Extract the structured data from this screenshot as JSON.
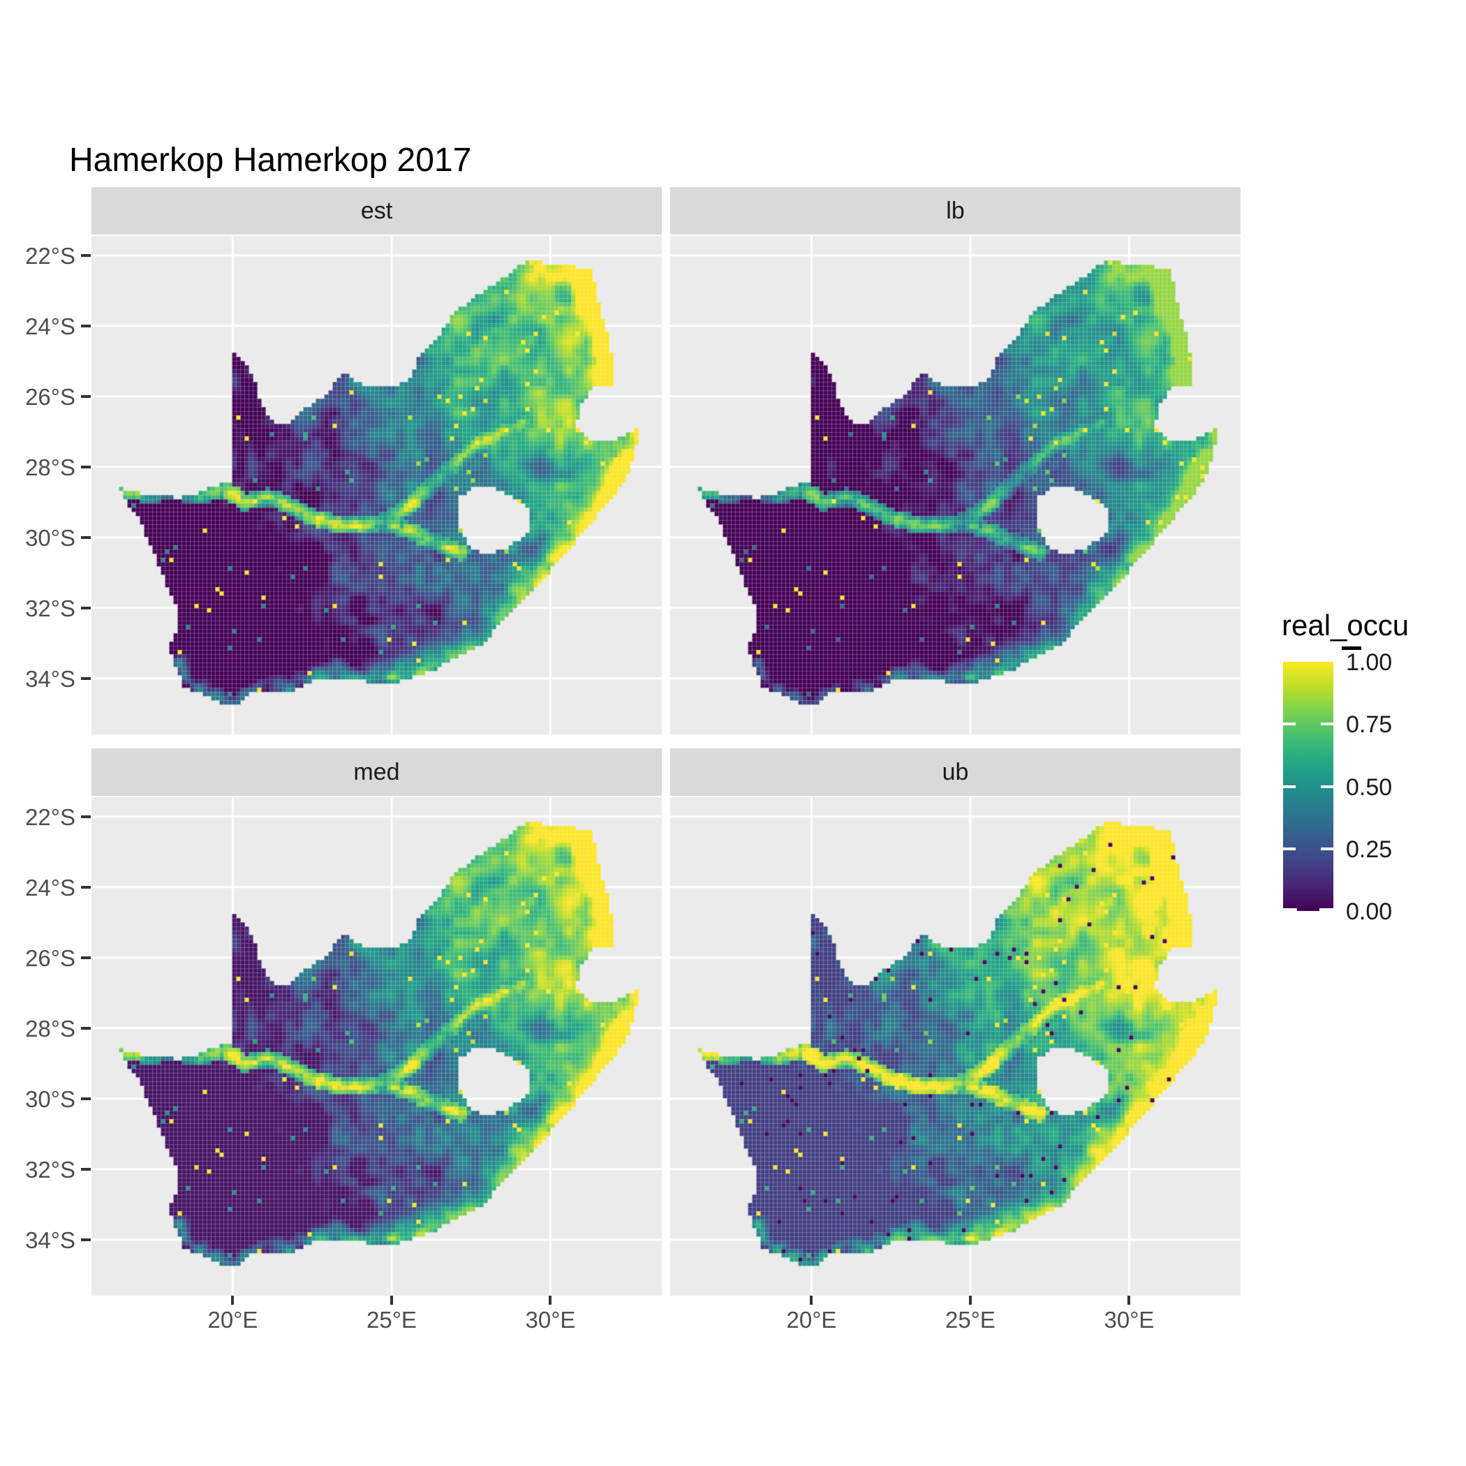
{
  "title": "Hamerkop Hamerkop 2017",
  "facets": [
    {
      "label": "est",
      "col": 0,
      "row": 0,
      "value_adjust": {
        "mul": 1.0,
        "add": 0.0,
        "dark_speckle": 0.0
      }
    },
    {
      "label": "lb",
      "col": 1,
      "row": 0,
      "value_adjust": {
        "mul": 0.95,
        "add": -0.11,
        "dark_speckle": 0.0
      }
    },
    {
      "label": "med",
      "col": 0,
      "row": 1,
      "value_adjust": {
        "mul": 1.0,
        "add": 0.05,
        "dark_speckle": 0.0
      }
    },
    {
      "label": "ub",
      "col": 1,
      "row": 1,
      "value_adjust": {
        "mul": 1.0,
        "add": 0.18,
        "dark_speckle": 0.015
      }
    }
  ],
  "axes": {
    "x": {
      "ticks": [
        {
          "label": "20°E",
          "lon": 20
        },
        {
          "label": "25°E",
          "lon": 25
        },
        {
          "label": "30°E",
          "lon": 30
        }
      ]
    },
    "y": {
      "ticks": [
        {
          "label": "22°S",
          "lat": -22
        },
        {
          "label": "24°S",
          "lat": -24
        },
        {
          "label": "26°S",
          "lat": -26
        },
        {
          "label": "28°S",
          "lat": -28
        },
        {
          "label": "30°S",
          "lat": -30
        },
        {
          "label": "32°S",
          "lat": -32
        },
        {
          "label": "34°S",
          "lat": -34
        }
      ]
    }
  },
  "legend": {
    "title": "real_occu",
    "ticks": [
      {
        "label": "1.00",
        "value": 1.0
      },
      {
        "label": "0.75",
        "value": 0.75
      },
      {
        "label": "0.50",
        "value": 0.5
      },
      {
        "label": "0.25",
        "value": 0.25
      },
      {
        "label": "0.00",
        "value": 0.0
      }
    ]
  },
  "colors": {
    "background": "#FFFFFF",
    "panel_bg": "#EBEBEB",
    "strip_bg": "#D9D9D9",
    "strip_text": "#1A1A1A",
    "grid_line": "#FFFFFF",
    "axis_text": "#4D4D4D",
    "tick_mark": "#333333",
    "title_text": "#000000",
    "legend_text": "#1A1A1A",
    "viridis": [
      [
        0,
        "#440154"
      ],
      [
        0.1,
        "#482475"
      ],
      [
        0.2,
        "#414487"
      ],
      [
        0.3,
        "#355F8D"
      ],
      [
        0.4,
        "#2A788E"
      ],
      [
        0.5,
        "#21918C"
      ],
      [
        0.6,
        "#22A884"
      ],
      [
        0.7,
        "#44BF70"
      ],
      [
        0.8,
        "#7AD151"
      ],
      [
        0.9,
        "#BDDF26"
      ],
      [
        1,
        "#FDE725"
      ]
    ]
  },
  "map": {
    "region": "South Africa",
    "outline": [
      [
        16.45,
        -28.58
      ],
      [
        17.15,
        -28.78
      ],
      [
        17.75,
        -28.74
      ],
      [
        18.25,
        -28.9
      ],
      [
        19.0,
        -28.72
      ],
      [
        19.6,
        -28.48
      ],
      [
        19.98,
        -28.43
      ],
      [
        19.98,
        -24.77
      ],
      [
        20.45,
        -25.1
      ],
      [
        20.7,
        -25.6
      ],
      [
        20.85,
        -26.15
      ],
      [
        21.15,
        -26.6
      ],
      [
        21.55,
        -26.85
      ],
      [
        21.9,
        -26.67
      ],
      [
        22.25,
        -26.35
      ],
      [
        22.65,
        -26.15
      ],
      [
        22.9,
        -25.98
      ],
      [
        23.25,
        -25.6
      ],
      [
        23.48,
        -25.3
      ],
      [
        23.95,
        -25.62
      ],
      [
        24.45,
        -25.75
      ],
      [
        25.0,
        -25.72
      ],
      [
        25.55,
        -25.55
      ],
      [
        25.85,
        -24.9
      ],
      [
        26.2,
        -24.62
      ],
      [
        26.5,
        -24.3
      ],
      [
        26.88,
        -23.75
      ],
      [
        27.3,
        -23.4
      ],
      [
        27.75,
        -23.1
      ],
      [
        28.2,
        -22.85
      ],
      [
        28.6,
        -22.58
      ],
      [
        29.05,
        -22.25
      ],
      [
        29.5,
        -22.15
      ],
      [
        30.0,
        -22.3
      ],
      [
        30.55,
        -22.3
      ],
      [
        31.1,
        -22.38
      ],
      [
        31.3,
        -22.42
      ],
      [
        31.55,
        -23.5
      ],
      [
        31.85,
        -24.3
      ],
      [
        31.95,
        -25.1
      ],
      [
        32.0,
        -25.65
      ],
      [
        31.4,
        -25.72
      ],
      [
        30.95,
        -26.25
      ],
      [
        30.82,
        -26.85
      ],
      [
        31.2,
        -27.2
      ],
      [
        31.95,
        -27.3
      ],
      [
        32.85,
        -26.85
      ],
      [
        32.55,
        -28.0
      ],
      [
        32.1,
        -28.75
      ],
      [
        31.4,
        -29.45
      ],
      [
        30.75,
        -30.15
      ],
      [
        30.05,
        -30.9
      ],
      [
        29.4,
        -31.6
      ],
      [
        28.6,
        -32.25
      ],
      [
        27.9,
        -33.0
      ],
      [
        27.1,
        -33.35
      ],
      [
        26.45,
        -33.72
      ],
      [
        25.65,
        -33.98
      ],
      [
        24.85,
        -34.18
      ],
      [
        24.0,
        -34.05
      ],
      [
        23.35,
        -33.98
      ],
      [
        22.6,
        -34.05
      ],
      [
        21.9,
        -34.35
      ],
      [
        21.0,
        -34.42
      ],
      [
        20.5,
        -34.45
      ],
      [
        20.0,
        -34.82
      ],
      [
        19.35,
        -34.6
      ],
      [
        18.8,
        -34.35
      ],
      [
        18.45,
        -34.25
      ],
      [
        18.3,
        -33.88
      ],
      [
        18.0,
        -33.1
      ],
      [
        18.3,
        -32.6
      ],
      [
        18.2,
        -31.85
      ],
      [
        17.85,
        -31.2
      ],
      [
        17.55,
        -30.5
      ],
      [
        17.05,
        -29.5
      ],
      [
        16.6,
        -28.9
      ]
    ],
    "lesotho_hole": [
      [
        27.05,
        -28.92
      ],
      [
        27.6,
        -28.6
      ],
      [
        28.25,
        -28.6
      ],
      [
        28.9,
        -28.9
      ],
      [
        29.4,
        -29.3
      ],
      [
        29.35,
        -29.85
      ],
      [
        28.75,
        -30.25
      ],
      [
        28.1,
        -30.5
      ],
      [
        27.5,
        -30.3
      ],
      [
        27.1,
        -29.7
      ]
    ],
    "rivers": {
      "orange": [
        [
          16.55,
          -28.6
        ],
        [
          17.4,
          -28.8
        ],
        [
          18.1,
          -28.65
        ],
        [
          18.9,
          -28.85
        ],
        [
          19.7,
          -28.6
        ],
        [
          20.4,
          -29.0
        ],
        [
          21.1,
          -28.85
        ],
        [
          21.9,
          -29.15
        ],
        [
          22.6,
          -29.45
        ],
        [
          23.4,
          -29.65
        ],
        [
          24.2,
          -29.68
        ],
        [
          24.75,
          -29.55
        ]
      ],
      "vaal": [
        [
          24.75,
          -29.55
        ],
        [
          25.6,
          -29.1
        ],
        [
          26.3,
          -28.5
        ],
        [
          26.9,
          -28.0
        ],
        [
          27.7,
          -27.35
        ],
        [
          28.45,
          -27.0
        ],
        [
          29.15,
          -26.75
        ]
      ],
      "upper_orange": [
        [
          24.75,
          -29.55
        ],
        [
          25.7,
          -29.88
        ],
        [
          26.55,
          -30.2
        ],
        [
          27.2,
          -30.45
        ]
      ]
    },
    "coast_east": [
      [
        25.65,
        -33.98
      ],
      [
        27.0,
        -33.35
      ],
      [
        27.9,
        -33.0
      ],
      [
        29.0,
        -32.0
      ],
      [
        30.05,
        -30.9
      ],
      [
        31.0,
        -29.9
      ],
      [
        31.9,
        -28.9
      ],
      [
        32.55,
        -28.0
      ],
      [
        32.85,
        -26.85
      ],
      [
        32.0,
        -25.8
      ],
      [
        31.9,
        -24.3
      ],
      [
        31.55,
        -23.5
      ],
      [
        31.3,
        -22.42
      ]
    ],
    "coast_south": [
      [
        18.35,
        -33.55
      ],
      [
        18.5,
        -34.05
      ],
      [
        19.0,
        -34.35
      ],
      [
        19.4,
        -34.5
      ],
      [
        20.0,
        -34.75
      ],
      [
        20.8,
        -34.4
      ],
      [
        21.8,
        -34.3
      ],
      [
        22.6,
        -34.05
      ],
      [
        23.4,
        -33.95
      ],
      [
        24.3,
        -34.1
      ],
      [
        25.0,
        -33.95
      ]
    ]
  },
  "chart_data": {
    "type": "heatmap",
    "title": "Hamerkop Hamerkop 2017",
    "variable": "real_occu",
    "value_range": [
      0,
      1
    ],
    "palette": "viridis",
    "region": "South Africa (Lesotho and eSwatini shown blank)",
    "facets": [
      "est",
      "lb",
      "med",
      "ub"
    ],
    "x_axis": {
      "ticks": [
        "20°E",
        "25°E",
        "30°E"
      ],
      "tick_values": [
        20,
        25,
        30
      ],
      "range_lon": [
        15.55,
        33.5
      ]
    },
    "y_axis": {
      "ticks": [
        "22°S",
        "24°S",
        "26°S",
        "28°S",
        "30°S",
        "32°S",
        "34°S"
      ],
      "tick_values": [
        -22,
        -24,
        -26,
        -28,
        -30,
        -32,
        -34
      ],
      "range_lat": [
        -35.6,
        -21.45
      ]
    },
    "legend_ticks": [
      1.0,
      0.75,
      0.5,
      0.25,
      0.0
    ],
    "grid": "white major gridlines on light gray panels",
    "legend_position": "right",
    "pattern_summary": {
      "overall": "Raster map of occupancy probability: near 0 (dark purple) across the arid west and southwest interior, mid green values through the central plateau and along the southern coastal belt, near 1 (yellow) in the northeast and along the eastern coastal strip; Orange and Vaal river corridors appear as elevated green-yellow lines; scattered yellow speckle cells throughout the dark region.",
      "est": "point estimate pattern as described",
      "lb": "visibly darker overall (lower values), same spatial pattern",
      "med": "very similar to est, slightly brighter mid values",
      "ub": "brightest: northeast nearly solid yellow with scattered dark cells, more green in the southwest"
    }
  }
}
